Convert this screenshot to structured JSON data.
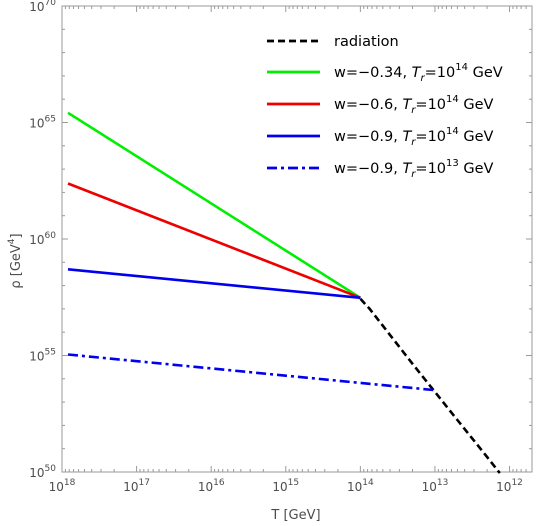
{
  "chart_data": {
    "type": "line",
    "xlabel": "T [GeV]",
    "ylabel_base": "ρ [GeV",
    "ylabel_exp": "4",
    "ylabel_end": "]",
    "x_scale": "log, reversed",
    "y_scale": "log",
    "xlim": [
      1e+18,
      500000000000.0
    ],
    "ylim": [
      1e+50,
      1e+70
    ],
    "x_ticks": [
      {
        "base": "10",
        "exp": "18",
        "value": 1e+18
      },
      {
        "base": "10",
        "exp": "17",
        "value": 1e+17
      },
      {
        "base": "10",
        "exp": "16",
        "value": 1e+16
      },
      {
        "base": "10",
        "exp": "15",
        "value": 1000000000000000.0
      },
      {
        "base": "10",
        "exp": "14",
        "value": 100000000000000.0
      },
      {
        "base": "10",
        "exp": "13",
        "value": 10000000000000.0
      },
      {
        "base": "10",
        "exp": "12",
        "value": 1000000000000.0
      }
    ],
    "y_ticks": [
      {
        "base": "10",
        "exp": "50",
        "value": 1e+50
      },
      {
        "base": "10",
        "exp": "55",
        "value": 1e+55
      },
      {
        "base": "10",
        "exp": "60",
        "value": 1e+60
      },
      {
        "base": "10",
        "exp": "65",
        "value": 1e+65
      },
      {
        "base": "10",
        "exp": "70",
        "value": 1e+70
      }
    ],
    "grid": false,
    "legend_position": "top-right",
    "series": [
      {
        "name": "radiation",
        "color": "#000000",
        "dash": "dashed",
        "x": [
          100000000000000.0,
          75000000000000.0,
          50000000000000.0,
          20000000000000.0,
          10000000000000.0,
          5000000000000.0,
          2000000000000.0,
          1350000000000.0
        ],
        "y": [
          2.7e+57,
          1e+57,
          1.9e+56,
          4.4e+54,
          2.7e+53,
          1.7e+52,
          4.4e+50,
          9e+49
        ]
      },
      {
        "name": "w=−0.34, Tr=10^14 GeV",
        "name_parts": [
          "w=−0.34, ",
          "T",
          "r",
          "=10",
          "14",
          " GeV"
        ],
        "color": "#00ee00",
        "dash": "solid",
        "x": [
          8.3e+17,
          100000000000000.0
        ],
        "y": [
          2.6e+65,
          3e+57
        ]
      },
      {
        "name": "w=−0.6, Tr=10^14 GeV",
        "name_parts": [
          "w=−0.6, ",
          "T",
          "r",
          "=10",
          "14",
          " GeV"
        ],
        "color": "#ee0000",
        "dash": "solid",
        "x": [
          8.3e+17,
          100000000000000.0
        ],
        "y": [
          2.4e+62,
          3e+57
        ]
      },
      {
        "name": "w=−0.9, Tr=10^14 GeV",
        "name_parts": [
          "w=−0.9, ",
          "T",
          "r",
          "=10",
          "14",
          " GeV"
        ],
        "color": "#0000ee",
        "dash": "solid",
        "x": [
          8.3e+17,
          100000000000000.0
        ],
        "y": [
          5e+58,
          3e+57
        ]
      },
      {
        "name": "w=−0.9, Tr=10^13 GeV",
        "name_parts": [
          "w=−0.9, ",
          "T",
          "r",
          "=10",
          "13",
          " GeV"
        ],
        "color": "#0000ee",
        "dash": "dashdot",
        "x": [
          8.3e+17,
          10500000000000.0
        ],
        "y": [
          1.1e+55,
          3.3e+53
        ]
      }
    ]
  }
}
